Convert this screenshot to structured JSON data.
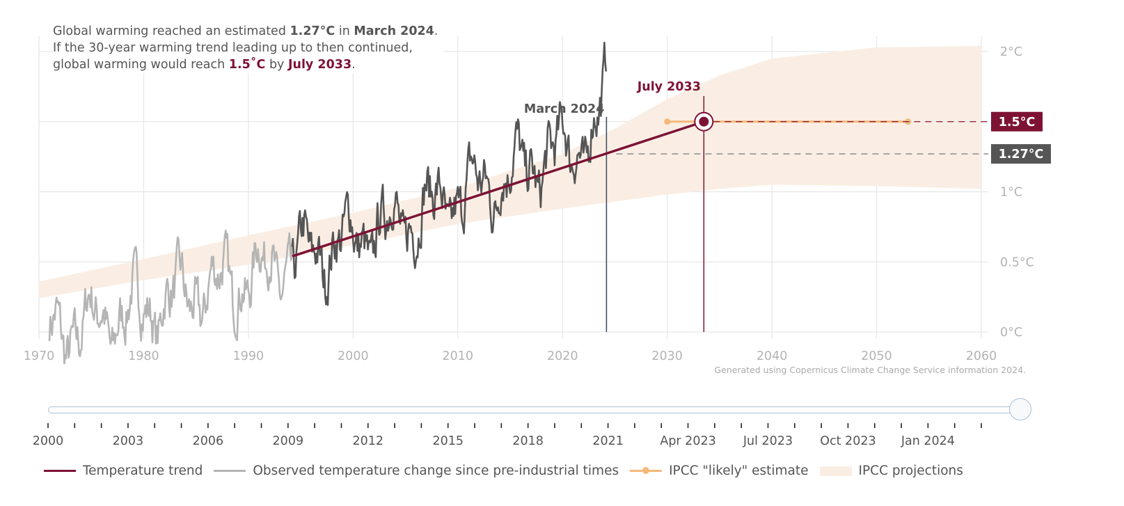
{
  "headline": {
    "line1_a": "Global warming reached an estimated ",
    "line1_value": "1.27°C",
    "line1_b": " in ",
    "line1_date": "March 2024",
    "line1_c": ".",
    "line2": "If the 30-year warming trend leading up to then continued,",
    "line3_a": "global warming would reach ",
    "line3_value": "1.5˚C",
    "line3_b": " by ",
    "line3_date": "July 2033",
    "line3_c": "."
  },
  "source_note": "Generated using Copernicus Climate Change Service information 2024.",
  "colors": {
    "trend": "#7d1235",
    "observed_recent": "#555555",
    "observed_early": "#b5b5b5",
    "ipcc_likely": "#f5b97a",
    "ipcc_band": "#faeee4",
    "grid": "#e6e6e6",
    "axis_text": "#b3b3b3",
    "badge_dark": "#555555"
  },
  "chart_data": {
    "type": "line",
    "xlim": [
      1970,
      2060
    ],
    "ylim": [
      -0.15,
      2.0
    ],
    "x_ticks": [
      "1970",
      "1980",
      "1990",
      "2000",
      "2010",
      "2020",
      "2030",
      "2040",
      "2050",
      "2060"
    ],
    "y_ticks": [
      "0°C",
      "0.5°C",
      "1°C",
      "2°C"
    ],
    "y_tick_values": [
      0,
      0.5,
      1,
      2
    ],
    "grid": true,
    "legend_position": "bottom",
    "series": [
      {
        "name": "Temperature trend",
        "x": [
          1994.2,
          2033.5
        ],
        "values": [
          0.54,
          1.5
        ]
      },
      {
        "name": "Observed temperature change since pre-industrial times",
        "x_start": 1971.0,
        "x_end": 2024.2,
        "split_year": 1994.2
      },
      {
        "name": "IPCC \"likely\" estimate",
        "x": [
          2030,
          2053
        ],
        "values": [
          1.5,
          1.5
        ]
      },
      {
        "name": "IPCC projections",
        "x": [
          1970,
          1980,
          1990,
          2000,
          2010,
          2020,
          2025,
          2030,
          2035,
          2040,
          2050,
          2060
        ],
        "upper": [
          0.36,
          0.52,
          0.69,
          0.85,
          1.03,
          1.27,
          1.45,
          1.66,
          1.83,
          1.95,
          2.03,
          2.04
        ],
        "lower": [
          0.24,
          0.37,
          0.48,
          0.62,
          0.77,
          0.88,
          0.93,
          0.98,
          1.02,
          1.05,
          1.04,
          1.02
        ]
      }
    ],
    "markers": {
      "current": {
        "label": "March 2024",
        "x": 2024.2,
        "value": 1.27,
        "badge": "1.27°C"
      },
      "target": {
        "label": "July 2033",
        "x": 2033.5,
        "value": 1.5,
        "badge": "1.5°C"
      }
    }
  },
  "timeline": {
    "tick_labels": [
      "2000",
      "2003",
      "2006",
      "2009",
      "2012",
      "2015",
      "2018",
      "2021",
      "Apr 2023",
      "Jul 2023",
      "Oct 2023",
      "Jan 2024"
    ],
    "position": 1.0
  },
  "legend": {
    "items": [
      {
        "label": "Temperature trend",
        "color": "#7d1235",
        "style": "line"
      },
      {
        "label": "Observed temperature change since pre-industrial times",
        "color": "#b5b5b5",
        "style": "line"
      },
      {
        "label": "IPCC \"likely\" estimate",
        "color": "#f5b97a",
        "style": "dot"
      },
      {
        "label": "IPCC projections",
        "color": "#faeee4",
        "style": "band"
      }
    ]
  }
}
